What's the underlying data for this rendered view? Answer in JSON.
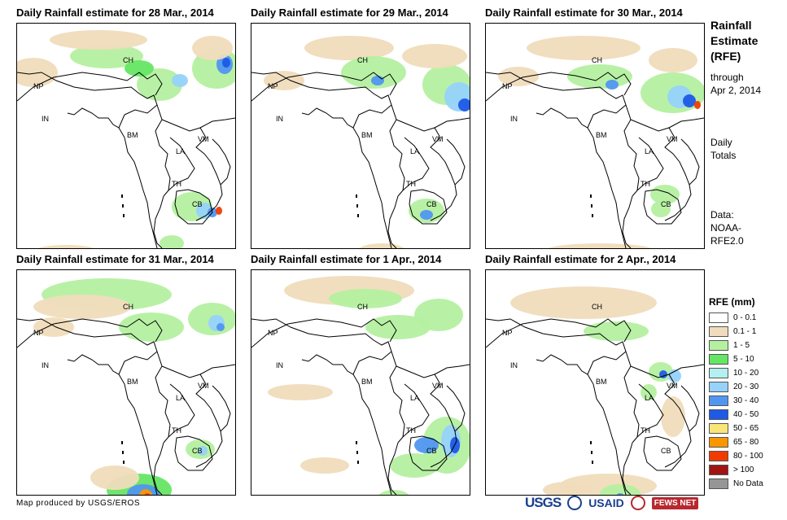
{
  "panels": [
    {
      "title": "Daily Rainfall estimate for 28 Mar., 2014"
    },
    {
      "title": "Daily Rainfall estimate for 29 Mar., 2014"
    },
    {
      "title": "Daily Rainfall estimate for 30 Mar., 2014"
    },
    {
      "title": "Daily Rainfall estimate for 31 Mar., 2014"
    },
    {
      "title": "Daily Rainfall estimate for 1 Apr., 2014"
    },
    {
      "title": "Daily Rainfall estimate for 2 Apr., 2014"
    }
  ],
  "country_labels": [
    "CH",
    "NP",
    "IN",
    "BM",
    "LA",
    "VM",
    "TH",
    "CB"
  ],
  "sidebar": {
    "title_lines": [
      "Rainfall",
      "Estimate",
      "(RFE)"
    ],
    "through_lines": [
      "through",
      "Apr 2, 2014"
    ],
    "totals_lines": [
      "Daily",
      "Totals"
    ],
    "data_lines": [
      "Data:",
      "NOAA-",
      "RFE2.0"
    ]
  },
  "legend": {
    "title": "RFE (mm)",
    "items": [
      {
        "label": "0 - 0.1",
        "color": "#ffffff"
      },
      {
        "label": "0.1 - 1",
        "color": "#f0dcbc"
      },
      {
        "label": "1 - 5",
        "color": "#b4f0a0"
      },
      {
        "label": "5 - 10",
        "color": "#64e664"
      },
      {
        "label": "10 - 20",
        "color": "#b4f0f0"
      },
      {
        "label": "20 - 30",
        "color": "#96d2fa"
      },
      {
        "label": "30 - 40",
        "color": "#5096f0"
      },
      {
        "label": "40 - 50",
        "color": "#1e5ae6"
      },
      {
        "label": "50 - 65",
        "color": "#fae678"
      },
      {
        "label": "65 - 80",
        "color": "#fa9600"
      },
      {
        "label": "80 - 100",
        "color": "#f03c00"
      },
      {
        "label": "> 100",
        "color": "#a01414"
      },
      {
        "label": "No Data",
        "color": "#969696"
      }
    ]
  },
  "footer": {
    "credit": "Map produced by USGS/EROS",
    "logos": [
      "USGS",
      "USAID",
      "FEWS NET"
    ]
  }
}
